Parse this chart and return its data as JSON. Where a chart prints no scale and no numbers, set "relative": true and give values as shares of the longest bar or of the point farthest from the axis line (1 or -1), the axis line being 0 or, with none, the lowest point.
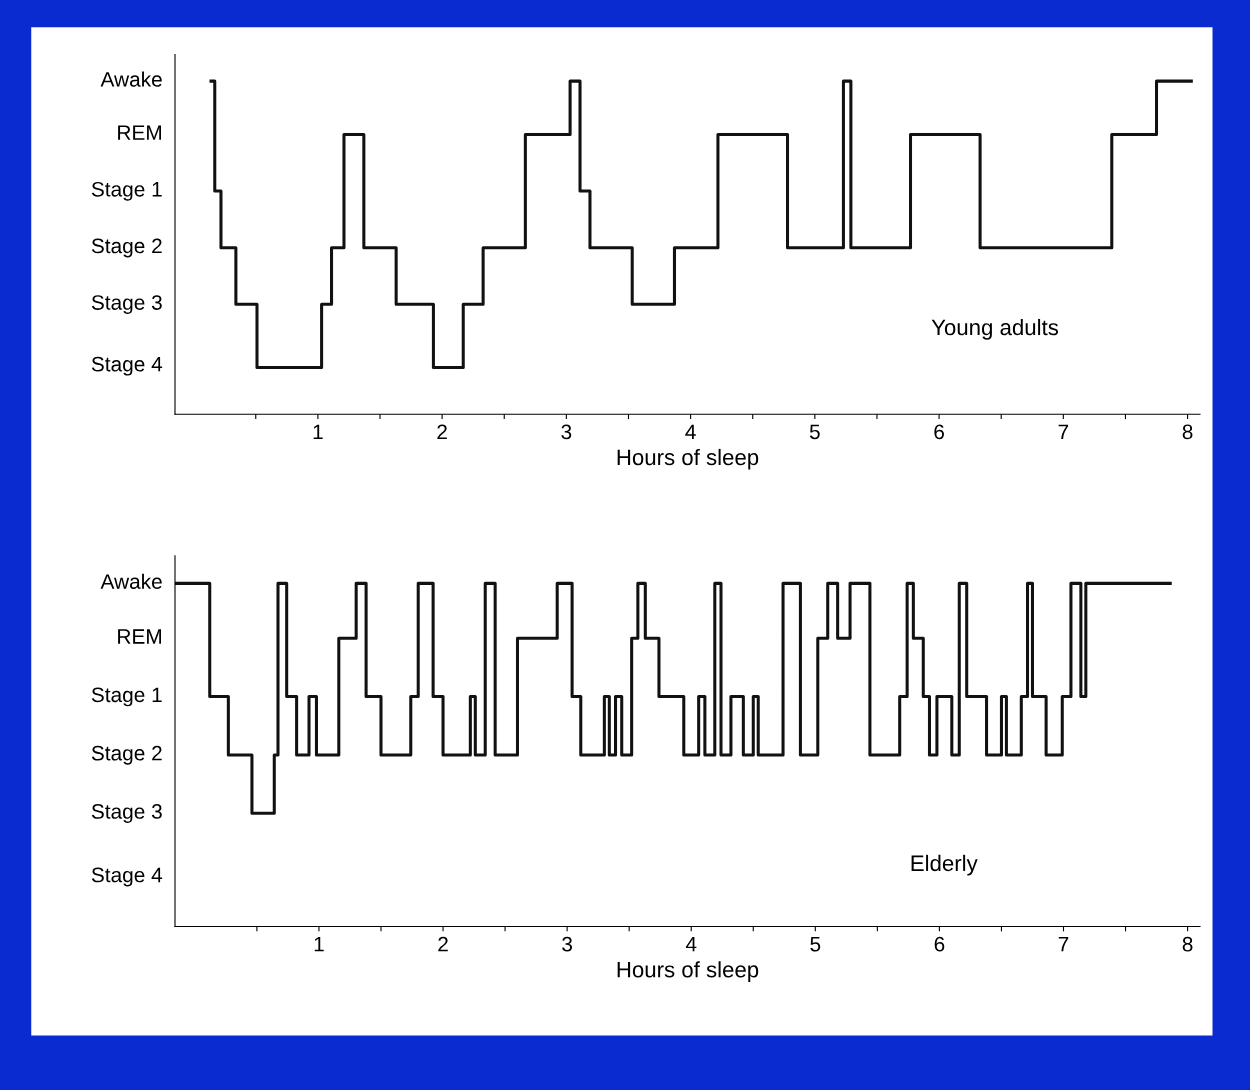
{
  "chart_data": [
    {
      "type": "step",
      "relative": true,
      "xlabel": "Hours of sleep",
      "color": "#111111",
      "annotations": [
        "Young adults",
        "Awake",
        "REM",
        "Stage 1",
        "Stage 2",
        "Stage 3",
        "Stage 4"
      ],
      "x": [
        0.14,
        0.17,
        0.22,
        0.34,
        0.51,
        1.03,
        1.11,
        1.21,
        1.37,
        1.63,
        1.93,
        2.17,
        2.33,
        2.67,
        3.03,
        3.11,
        3.19,
        3.53,
        3.87,
        4.22,
        4.78,
        5.23,
        5.29,
        5.77,
        6.33,
        7.39,
        7.75,
        8.03
      ],
      "values": [
        1,
        0.67,
        0.5,
        0.33,
        0.14,
        0.33,
        0.5,
        0.84,
        0.5,
        0.33,
        0.14,
        0.33,
        0.5,
        0.84,
        1,
        0.67,
        0.5,
        0.33,
        0.5,
        0.84,
        0.5,
        1,
        0.5,
        0.84,
        0.5,
        0.84,
        1,
        1
      ],
      "xlim": [
        -0.15,
        8.1
      ],
      "xticks": [
        {
          "value": 0.5,
          "label": null
        },
        1,
        {
          "value": 1.5,
          "label": null
        },
        2,
        {
          "value": 2.5,
          "label": null
        },
        3,
        {
          "value": 3.5,
          "label": null
        },
        4,
        {
          "value": 4.5,
          "label": null
        },
        5,
        {
          "value": 5.5,
          "label": null
        },
        6,
        {
          "value": 6.5,
          "label": null
        },
        7,
        {
          "value": 7.5,
          "label": null
        },
        8
      ],
      "grid": false,
      "legend": false
    },
    {
      "type": "step",
      "relative": true,
      "xlabel": "Hours of sleep",
      "color": "#111111",
      "annotations": [
        "Elderly",
        "Awake",
        "REM",
        "Stage 1",
        "Stage 2",
        "Stage 3",
        "Stage 4"
      ],
      "x": [
        -0.16,
        0.12,
        0.27,
        0.46,
        0.64,
        0.67,
        0.74,
        0.82,
        0.92,
        0.98,
        1.04,
        1.16,
        1.3,
        1.38,
        1.5,
        1.74,
        1.8,
        1.92,
        2.0,
        2.22,
        2.26,
        2.34,
        2.42,
        2.6,
        2.92,
        3.04,
        3.11,
        3.3,
        3.34,
        3.39,
        3.44,
        3.52,
        3.57,
        3.63,
        3.74,
        3.94,
        4.06,
        4.11,
        4.19,
        4.24,
        4.32,
        4.42,
        4.5,
        4.54,
        4.74,
        4.88,
        5.02,
        5.1,
        5.18,
        5.28,
        5.44,
        5.68,
        5.74,
        5.79,
        5.87,
        5.92,
        5.98,
        6.1,
        6.16,
        6.22,
        6.38,
        6.5,
        6.54,
        6.66,
        6.71,
        6.75,
        6.86,
        6.99,
        7.06,
        7.14,
        7.18,
        7.86
      ],
      "values": [
        1,
        0.67,
        0.5,
        0.33,
        0.5,
        1,
        0.67,
        0.5,
        0.67,
        0.5,
        0.5,
        0.84,
        1,
        0.67,
        0.5,
        0.67,
        1,
        0.67,
        0.5,
        0.67,
        0.5,
        1,
        0.5,
        0.84,
        1,
        0.67,
        0.5,
        0.67,
        0.5,
        0.67,
        0.5,
        0.84,
        1,
        0.84,
        0.67,
        0.5,
        0.67,
        0.5,
        1,
        0.5,
        0.67,
        0.5,
        0.67,
        0.5,
        1,
        0.5,
        0.84,
        1,
        0.84,
        1,
        0.5,
        0.67,
        1,
        0.84,
        0.67,
        0.5,
        0.67,
        0.5,
        1,
        0.67,
        0.5,
        0.67,
        0.5,
        0.67,
        1,
        0.67,
        0.5,
        0.67,
        1,
        0.67,
        1,
        1
      ],
      "xlim": [
        -0.16,
        8.1
      ],
      "xticks": [
        {
          "value": 0.5,
          "label": null
        },
        1,
        {
          "value": 1.5,
          "label": null
        },
        2,
        {
          "value": 2.5,
          "label": null
        },
        3,
        {
          "value": 3.5,
          "label": null
        },
        4,
        {
          "value": 4.5,
          "label": null
        },
        5,
        {
          "value": 5.5,
          "label": null
        },
        6,
        {
          "value": 6.5,
          "label": null
        },
        7,
        {
          "value": 7.5,
          "label": null
        },
        8
      ],
      "grid": false,
      "legend": false
    }
  ]
}
